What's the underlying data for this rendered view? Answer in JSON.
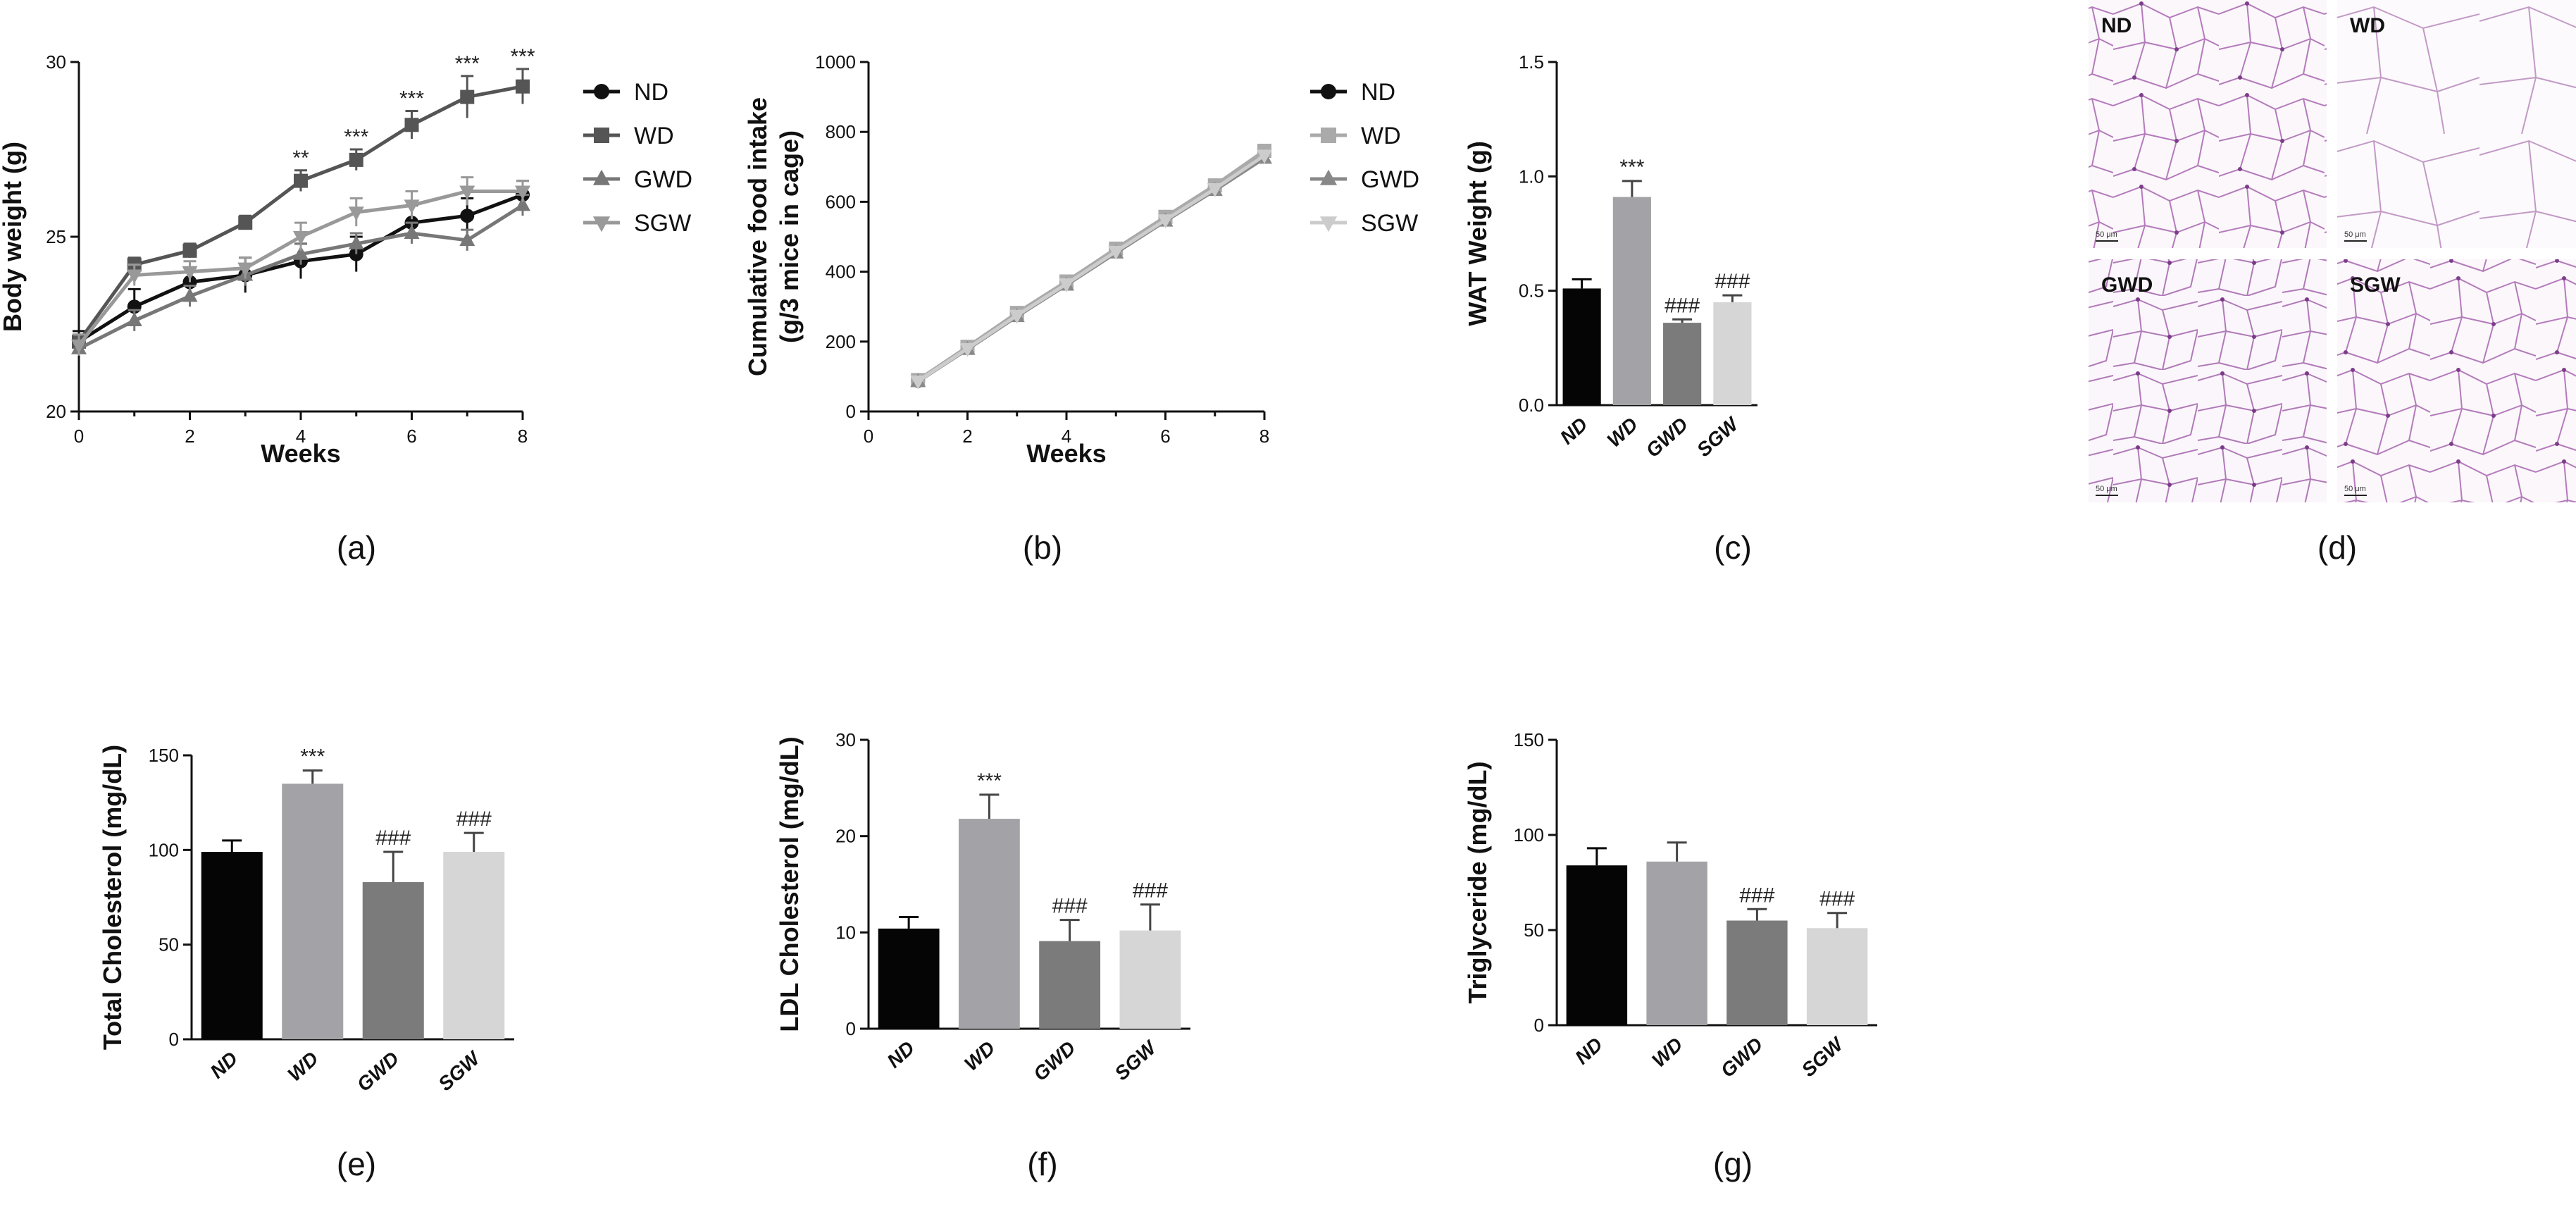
{
  "chart_data": [
    {
      "id": "a",
      "type": "line",
      "panel_label": "(a)",
      "xlabel": "Weeks",
      "ylabel": "Body weight  (g)",
      "xlim": [
        0,
        8
      ],
      "ylim": [
        20,
        30
      ],
      "xticks": [
        "0",
        "2",
        "4",
        "6",
        "8"
      ],
      "yticks": [
        "20",
        "25",
        "30"
      ],
      "x": [
        0,
        1,
        2,
        3,
        4,
        5,
        6,
        7,
        8
      ],
      "series": [
        {
          "name": "ND",
          "marker": "circle",
          "color": "#111111",
          "values": [
            22.0,
            23.0,
            23.7,
            23.9,
            24.3,
            24.5,
            25.4,
            25.6,
            26.2
          ],
          "errors": [
            0.3,
            0.5,
            0.4,
            0.5,
            0.5,
            0.5,
            0.5,
            0.5,
            0.4
          ]
        },
        {
          "name": "WD",
          "marker": "square",
          "color": "#555555",
          "values": [
            22.0,
            24.2,
            24.6,
            25.4,
            26.6,
            27.2,
            28.2,
            29.0,
            29.3
          ],
          "errors": [
            0.2,
            0.2,
            0.2,
            0.2,
            0.3,
            0.3,
            0.4,
            0.6,
            0.5
          ]
        },
        {
          "name": "GWD",
          "marker": "triangle-up",
          "color": "#777777",
          "values": [
            21.8,
            22.6,
            23.3,
            23.9,
            24.5,
            24.8,
            25.1,
            24.9,
            25.9
          ],
          "errors": [
            0.2,
            0.3,
            0.3,
            0.3,
            0.3,
            0.3,
            0.3,
            0.3,
            0.3
          ]
        },
        {
          "name": "SGW",
          "marker": "triangle-down",
          "color": "#999999",
          "values": [
            21.9,
            23.9,
            24.0,
            24.1,
            25.0,
            25.7,
            25.9,
            26.3,
            26.3
          ],
          "errors": [
            0.3,
            0.3,
            0.3,
            0.3,
            0.4,
            0.4,
            0.4,
            0.4,
            0.3
          ]
        }
      ],
      "annotations": [
        {
          "x": 4,
          "y": 26.9,
          "text": "**"
        },
        {
          "x": 5,
          "y": 27.5,
          "text": "***"
        },
        {
          "x": 6,
          "y": 28.6,
          "text": "***"
        },
        {
          "x": 7,
          "y": 29.6,
          "text": "***"
        },
        {
          "x": 8,
          "y": 29.8,
          "text": "***"
        }
      ],
      "legend": [
        "ND",
        "WD",
        "GWD",
        "SGW"
      ]
    },
    {
      "id": "b",
      "type": "line",
      "panel_label": "(b)",
      "xlabel": "Weeks",
      "ylabel": [
        "Cumulative food intake",
        "(g/3 mice in cage)"
      ],
      "xlim": [
        0,
        8
      ],
      "ylim": [
        0,
        1000
      ],
      "xticks": [
        "0",
        "2",
        "4",
        "6",
        "8"
      ],
      "yticks": [
        "0",
        "200",
        "400",
        "600",
        "800",
        "1000"
      ],
      "x": [
        1,
        2,
        3,
        4,
        5,
        6,
        7,
        8
      ],
      "series": [
        {
          "name": "ND",
          "marker": "circle",
          "color": "#111111",
          "values": [
            88,
            182,
            278,
            368,
            462,
            552,
            642,
            742
          ]
        },
        {
          "name": "WD",
          "marker": "square",
          "color": "#aaaaaa",
          "values": [
            90,
            185,
            282,
            372,
            466,
            557,
            647,
            746
          ]
        },
        {
          "name": "GWD",
          "marker": "triangle-up",
          "color": "#888888",
          "values": [
            86,
            178,
            272,
            362,
            454,
            545,
            633,
            725
          ]
        },
        {
          "name": "SGW",
          "marker": "triangle-down",
          "color": "#cccccc",
          "values": [
            87,
            180,
            275,
            365,
            458,
            548,
            637,
            733
          ]
        }
      ],
      "legend": [
        "ND",
        "WD",
        "GWD",
        "SGW"
      ]
    },
    {
      "id": "c",
      "type": "bar",
      "panel_label": "(c)",
      "ylabel": "WAT Weight (g)",
      "ylim": [
        0,
        1.5
      ],
      "yticks": [
        "0.0",
        "0.5",
        "1.0",
        "1.5"
      ],
      "categories": [
        "ND",
        "WD",
        "GWD",
        "SGW"
      ],
      "values": [
        0.51,
        0.91,
        0.36,
        0.45
      ],
      "errors": [
        0.04,
        0.07,
        0.015,
        0.03
      ],
      "colors": [
        "#050505",
        "#a3a3a7",
        "#7b7b7b",
        "#d6d6d6"
      ],
      "annotations": [
        "",
        "***",
        "###",
        "###"
      ]
    },
    {
      "id": "e",
      "type": "bar",
      "panel_label": "(e)",
      "ylabel": "Total Cholesterol (mg/dL)",
      "ylim": [
        0,
        150
      ],
      "yticks": [
        "0",
        "50",
        "100",
        "150"
      ],
      "categories": [
        "ND",
        "WD",
        "GWD",
        "SGW"
      ],
      "values": [
        99,
        135,
        83,
        99
      ],
      "errors": [
        6,
        7,
        16,
        10
      ],
      "colors": [
        "#050505",
        "#a3a3a7",
        "#7b7b7b",
        "#d6d6d6"
      ],
      "annotations": [
        "",
        "***",
        "###",
        "###"
      ]
    },
    {
      "id": "f",
      "type": "bar",
      "panel_label": "(f)",
      "ylabel": "LDL Cholesterol (mg/dL)",
      "ylim": [
        0,
        30
      ],
      "yticks": [
        "0",
        "10",
        "20",
        "30"
      ],
      "categories": [
        "ND",
        "WD",
        "GWD",
        "SGW"
      ],
      "values": [
        10.4,
        21.8,
        9.1,
        10.2
      ],
      "errors": [
        1.2,
        2.5,
        2.2,
        2.7
      ],
      "colors": [
        "#050505",
        "#a3a3a7",
        "#7b7b7b",
        "#d6d6d6"
      ],
      "annotations": [
        "",
        "***",
        "###",
        "###"
      ]
    },
    {
      "id": "g",
      "type": "bar",
      "panel_label": "(g)",
      "ylabel": "Triglyceride (mg/dL)",
      "ylim": [
        0,
        150
      ],
      "yticks": [
        "0",
        "50",
        "100",
        "150"
      ],
      "categories": [
        "ND",
        "WD",
        "GWD",
        "SGW"
      ],
      "values": [
        84,
        86,
        55,
        51
      ],
      "errors": [
        9,
        10,
        6,
        8
      ],
      "colors": [
        "#050505",
        "#a3a3a7",
        "#7b7b7b",
        "#d6d6d6"
      ],
      "annotations": [
        "",
        "",
        "###",
        "###"
      ]
    }
  ],
  "histology": {
    "panel_label": "(d)",
    "images": [
      {
        "label": "ND",
        "scale": "50 μm"
      },
      {
        "label": "WD",
        "scale": "50 μm"
      },
      {
        "label": "GWD",
        "scale": "50 μm"
      },
      {
        "label": "SGW",
        "scale": "50 μm"
      }
    ]
  }
}
